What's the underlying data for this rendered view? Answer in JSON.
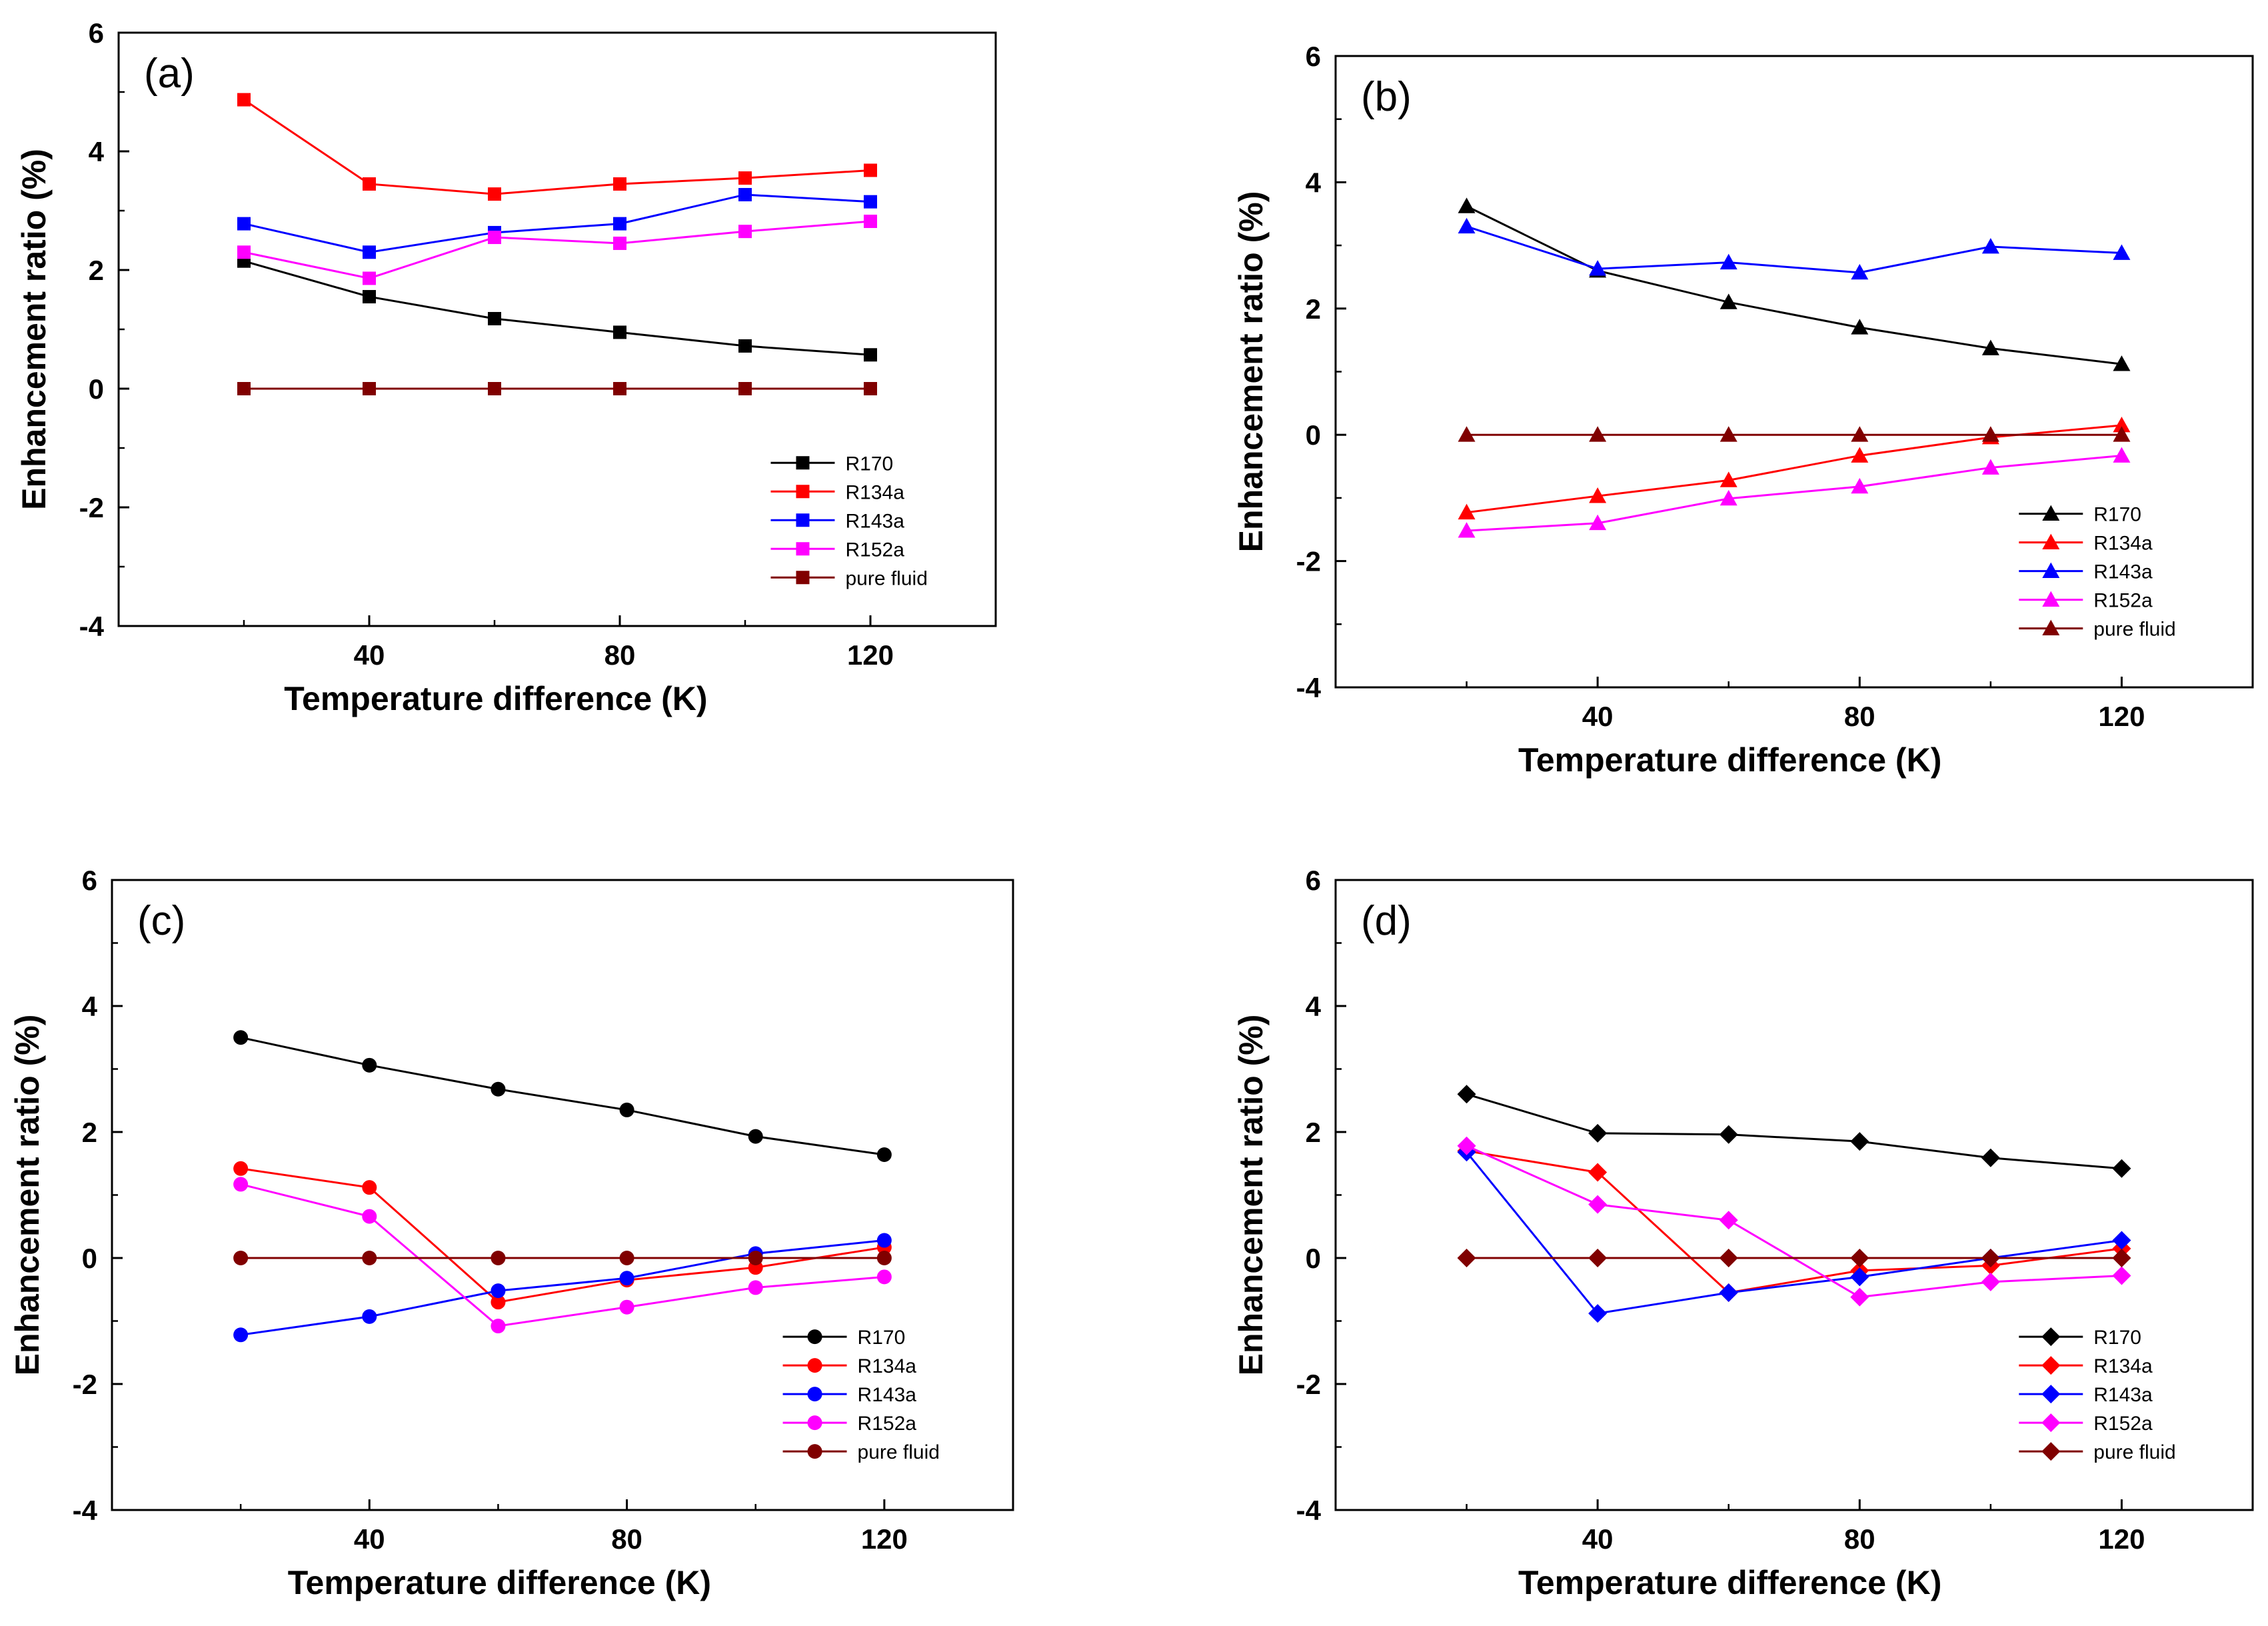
{
  "chart_data": [
    {
      "type": "line",
      "panel_label": "(a)",
      "marker": "square",
      "xlabel": "Temperature difference (K)",
      "ylabel": "Enhancement ratio (%)",
      "xlim": [
        0,
        140
      ],
      "ylim": [
        -4,
        6
      ],
      "x_ticks": [
        40,
        80,
        120
      ],
      "x_tick_labels": [
        "40",
        "80",
        "120"
      ],
      "y_ticks": [
        -4,
        -2,
        0,
        2,
        4,
        6
      ],
      "y_tick_labels": [
        "-4",
        "-2",
        "0",
        "2",
        "4",
        "6"
      ],
      "grid": false,
      "legend_position": "bottom-right",
      "x": [
        20,
        40,
        60,
        80,
        100,
        120
      ],
      "series": [
        {
          "name": "R170",
          "color": "#000000",
          "values": [
            2.15,
            1.55,
            1.18,
            0.95,
            0.72,
            0.57
          ]
        },
        {
          "name": "R134a",
          "color": "#ff0000",
          "values": [
            4.87,
            3.45,
            3.28,
            3.45,
            3.55,
            3.68
          ]
        },
        {
          "name": "R143a",
          "color": "#0000ff",
          "values": [
            2.78,
            2.3,
            2.63,
            2.78,
            3.27,
            3.15
          ]
        },
        {
          "name": "R152a",
          "color": "#ff00ff",
          "values": [
            2.3,
            1.86,
            2.55,
            2.45,
            2.65,
            2.82
          ]
        },
        {
          "name": "pure fluid",
          "color": "#800000",
          "values": [
            0,
            0,
            0,
            0,
            0,
            0
          ]
        }
      ]
    },
    {
      "type": "line",
      "panel_label": "(b)",
      "marker": "triangle",
      "xlabel": "Temperature difference (K)",
      "ylabel": "Enhancement ratio (%)",
      "xlim": [
        0,
        140
      ],
      "ylim": [
        -4,
        6
      ],
      "x_ticks": [
        40,
        80,
        120
      ],
      "x_tick_labels": [
        "40",
        "80",
        "120"
      ],
      "y_ticks": [
        -4,
        -2,
        0,
        2,
        4,
        6
      ],
      "y_tick_labels": [
        "-4",
        "-2",
        "0",
        "2",
        "4",
        "6"
      ],
      "grid": false,
      "legend_position": "bottom-right",
      "x": [
        20,
        40,
        60,
        80,
        100,
        120
      ],
      "series": [
        {
          "name": "R170",
          "color": "#000000",
          "values": [
            3.62,
            2.6,
            2.1,
            1.7,
            1.37,
            1.12
          ]
        },
        {
          "name": "R134a",
          "color": "#ff0000",
          "values": [
            -1.23,
            -0.97,
            -0.72,
            -0.33,
            -0.04,
            0.15
          ]
        },
        {
          "name": "R143a",
          "color": "#0000ff",
          "values": [
            3.3,
            2.63,
            2.73,
            2.57,
            2.98,
            2.88
          ]
        },
        {
          "name": "R152a",
          "color": "#ff00ff",
          "values": [
            -1.52,
            -1.4,
            -1.01,
            -0.82,
            -0.52,
            -0.33
          ]
        },
        {
          "name": "pure fluid",
          "color": "#800000",
          "values": [
            0,
            0,
            0,
            0,
            0,
            0
          ]
        }
      ]
    },
    {
      "type": "line",
      "panel_label": "(c)",
      "marker": "circle",
      "xlabel": "Temperature difference (K)",
      "ylabel": "Enhancement ratio (%)",
      "xlim": [
        0,
        140
      ],
      "ylim": [
        -4,
        6
      ],
      "x_ticks": [
        40,
        80,
        120
      ],
      "x_tick_labels": [
        "40",
        "80",
        "120"
      ],
      "y_ticks": [
        -4,
        -2,
        0,
        2,
        4,
        6
      ],
      "y_tick_labels": [
        "-4",
        "-2",
        "0",
        "2",
        "4",
        "6"
      ],
      "grid": false,
      "legend_position": "bottom-right",
      "x": [
        20,
        40,
        60,
        80,
        100,
        120
      ],
      "series": [
        {
          "name": "R170",
          "color": "#000000",
          "values": [
            3.5,
            3.06,
            2.68,
            2.35,
            1.93,
            1.64
          ]
        },
        {
          "name": "R134a",
          "color": "#ff0000",
          "values": [
            1.42,
            1.12,
            -0.7,
            -0.35,
            -0.15,
            0.17
          ]
        },
        {
          "name": "R143a",
          "color": "#0000ff",
          "values": [
            -1.22,
            -0.93,
            -0.52,
            -0.32,
            0.07,
            0.28
          ]
        },
        {
          "name": "R152a",
          "color": "#ff00ff",
          "values": [
            1.17,
            0.66,
            -1.08,
            -0.78,
            -0.47,
            -0.3
          ]
        },
        {
          "name": "pure fluid",
          "color": "#800000",
          "values": [
            0,
            0,
            0,
            0,
            0,
            0
          ]
        }
      ]
    },
    {
      "type": "line",
      "panel_label": "(d)",
      "marker": "diamond",
      "xlabel": "Temperature difference (K)",
      "ylabel": "Enhancement ratio (%)",
      "xlim": [
        0,
        140
      ],
      "ylim": [
        -4,
        6
      ],
      "x_ticks": [
        40,
        80,
        120
      ],
      "x_tick_labels": [
        "40",
        "80",
        "120"
      ],
      "y_ticks": [
        -4,
        -2,
        0,
        2,
        4,
        6
      ],
      "y_tick_labels": [
        "-4",
        "-2",
        "0",
        "2",
        "4",
        "6"
      ],
      "grid": false,
      "legend_position": "bottom-right",
      "x": [
        20,
        40,
        60,
        80,
        100,
        120
      ],
      "series": [
        {
          "name": "R170",
          "color": "#000000",
          "values": [
            2.6,
            1.98,
            1.96,
            1.85,
            1.59,
            1.42
          ]
        },
        {
          "name": "R134a",
          "color": "#ff0000",
          "values": [
            1.7,
            1.36,
            -0.55,
            -0.2,
            -0.12,
            0.15
          ]
        },
        {
          "name": "R143a",
          "color": "#0000ff",
          "values": [
            1.68,
            -0.88,
            -0.55,
            -0.3,
            0.0,
            0.28
          ]
        },
        {
          "name": "R152a",
          "color": "#ff00ff",
          "values": [
            1.78,
            0.85,
            0.6,
            -0.62,
            -0.38,
            -0.28
          ]
        },
        {
          "name": "pure fluid",
          "color": "#800000",
          "values": [
            0,
            0,
            0,
            0,
            0,
            0
          ]
        }
      ]
    }
  ]
}
